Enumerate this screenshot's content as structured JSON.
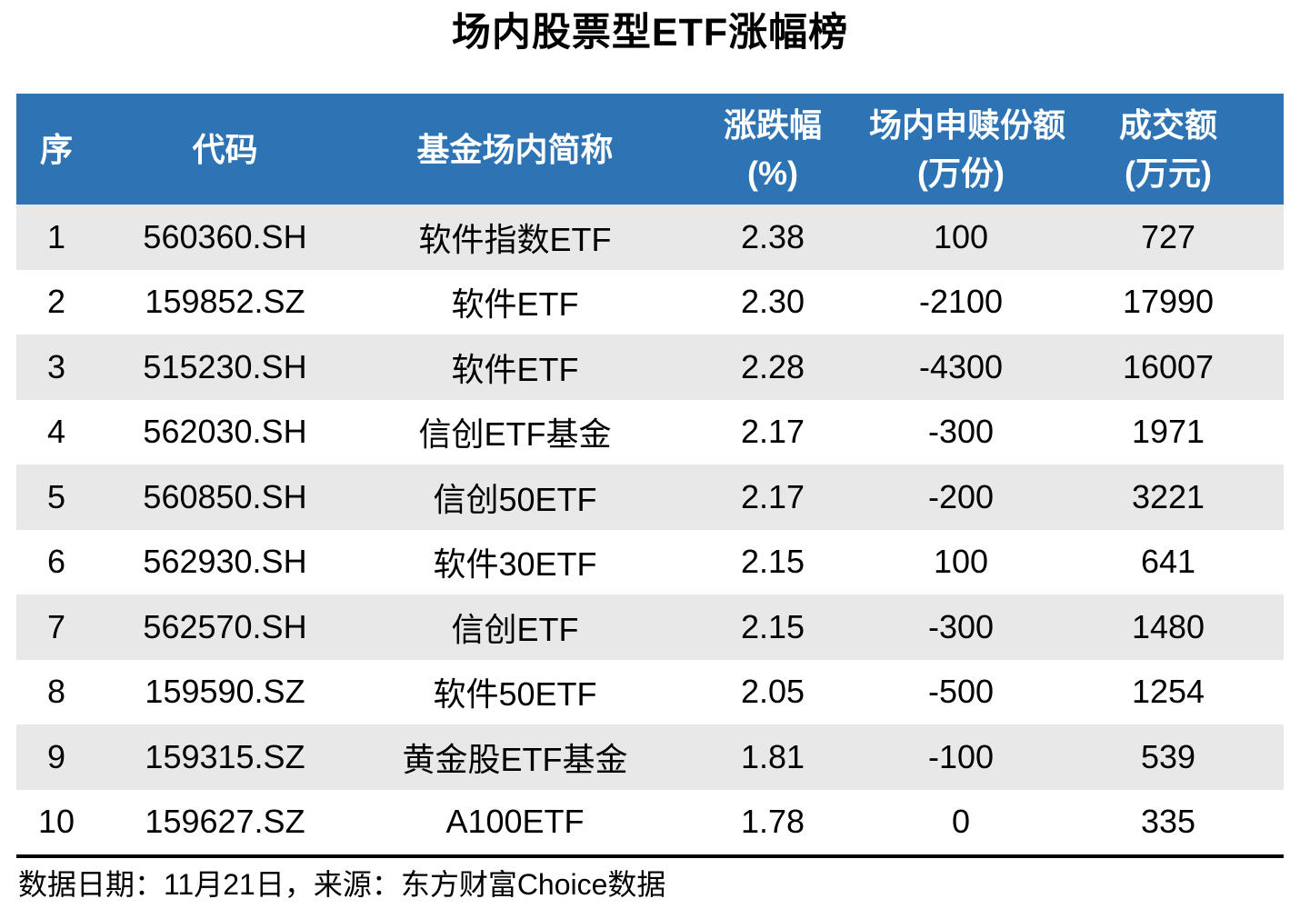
{
  "chart_data": {
    "type": "table",
    "title": "场内股票型ETF涨幅榜",
    "columns": [
      {
        "label": "序",
        "sub": ""
      },
      {
        "label": "代码",
        "sub": ""
      },
      {
        "label": "基金场内简称",
        "sub": ""
      },
      {
        "label": "涨跌幅",
        "sub": "(%)"
      },
      {
        "label": "场内申赎份额",
        "sub": "(万份)"
      },
      {
        "label": "成交额",
        "sub": "(万元)"
      }
    ],
    "rows": [
      [
        "1",
        "560360.SH",
        "软件指数ETF",
        "2.38",
        "100",
        "727"
      ],
      [
        "2",
        "159852.SZ",
        "软件ETF",
        "2.30",
        "-2100",
        "17990"
      ],
      [
        "3",
        "515230.SH",
        "软件ETF",
        "2.28",
        "-4300",
        "16007"
      ],
      [
        "4",
        "562030.SH",
        "信创ETF基金",
        "2.17",
        "-300",
        "1971"
      ],
      [
        "5",
        "560850.SH",
        "信创50ETF",
        "2.17",
        "-200",
        "3221"
      ],
      [
        "6",
        "562930.SH",
        "软件30ETF",
        "2.15",
        "100",
        "641"
      ],
      [
        "7",
        "562570.SH",
        "信创ETF",
        "2.15",
        "-300",
        "1480"
      ],
      [
        "8",
        "159590.SZ",
        "软件50ETF",
        "2.05",
        "-500",
        "1254"
      ],
      [
        "9",
        "159315.SZ",
        "黄金股ETF基金",
        "1.81",
        "-100",
        "539"
      ],
      [
        "10",
        "159627.SZ",
        "A100ETF",
        "1.78",
        "0",
        "335"
      ]
    ],
    "source_note": "数据日期：11月21日，来源：东方财富Choice数据"
  },
  "colors": {
    "header_bg": "#2E74B5",
    "header_text": "#FFFFFF",
    "row_stripe_bg": "#E8E8E8",
    "row_bg": "#FFFFFF",
    "body_text": "#000000",
    "rule": "#000000"
  }
}
